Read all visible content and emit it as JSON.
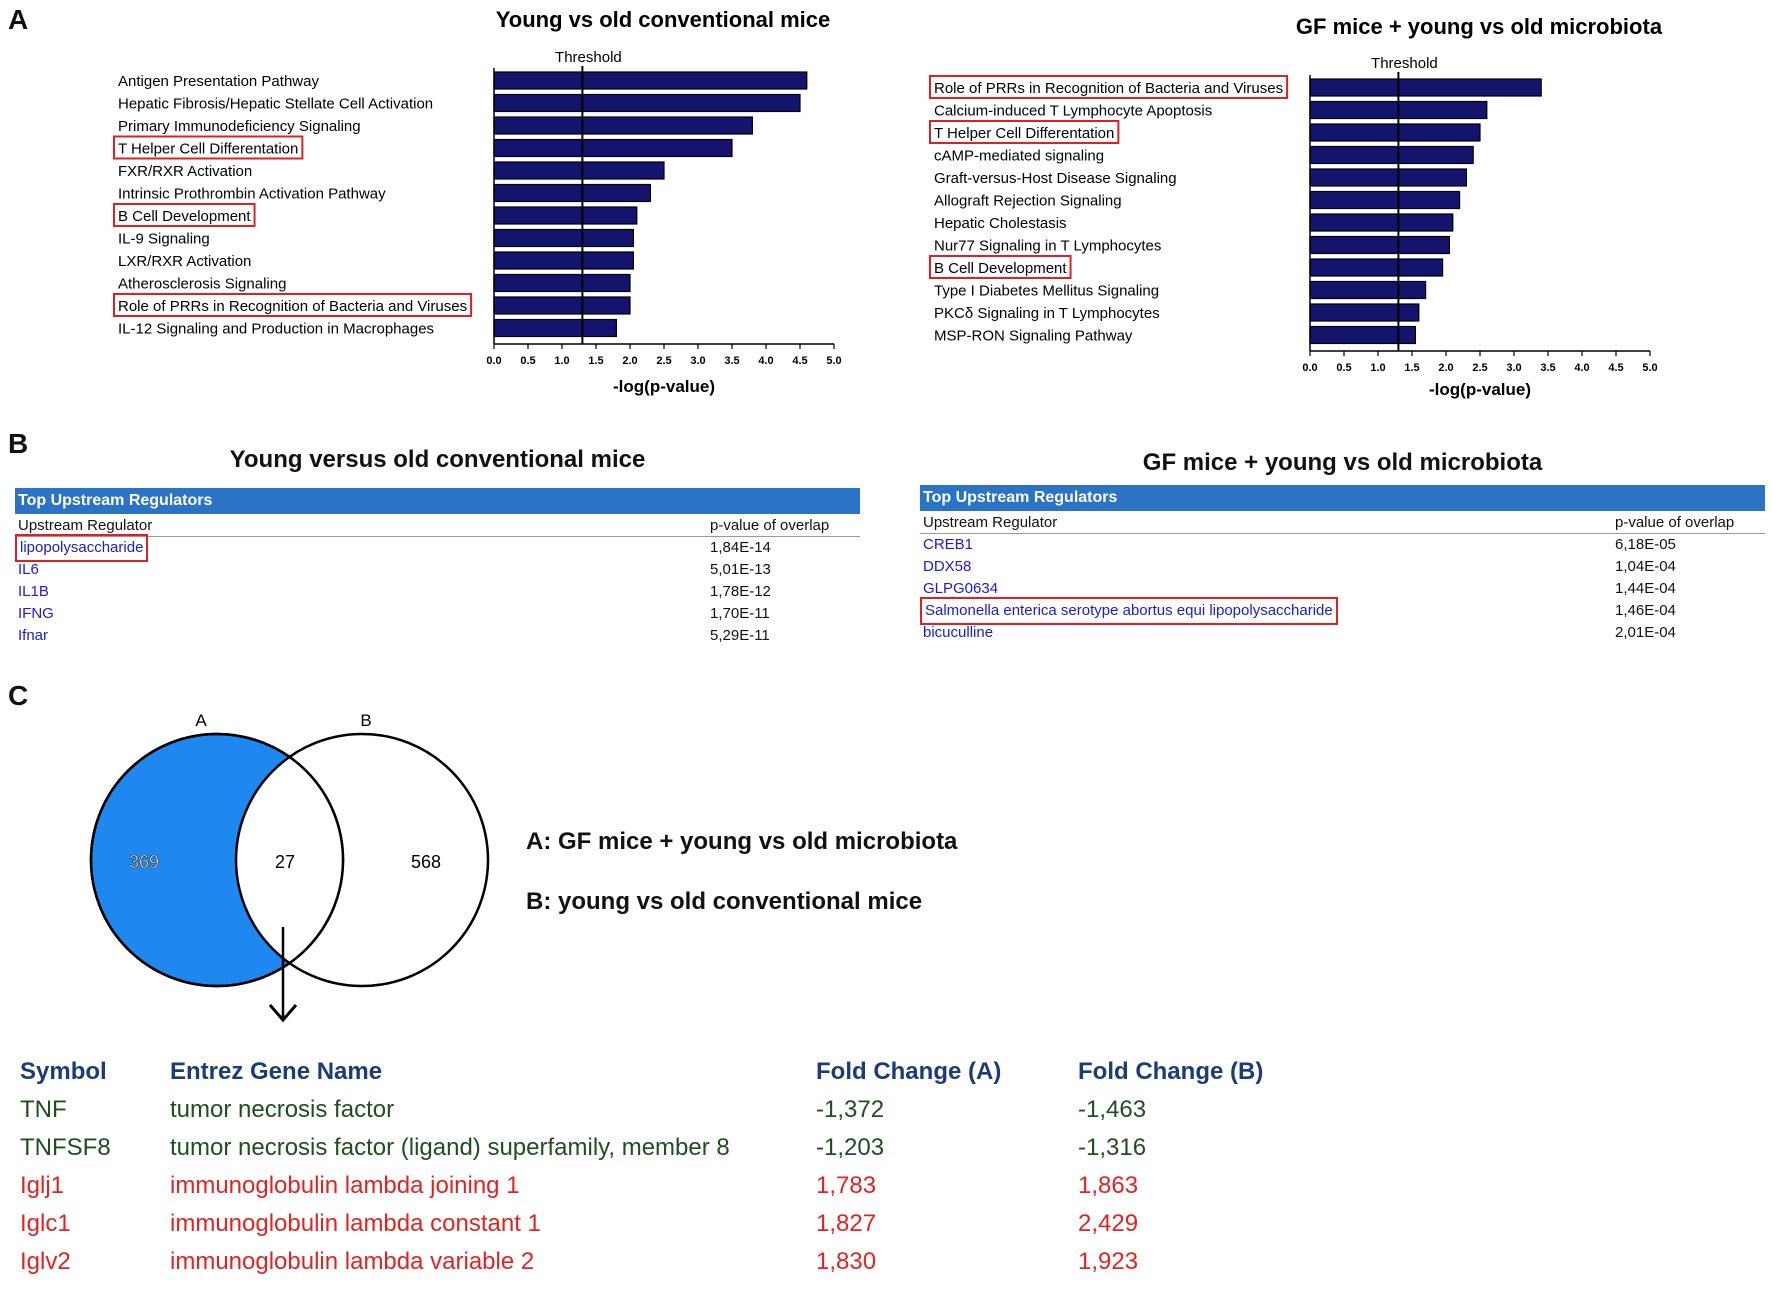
{
  "panels": {
    "a": "A",
    "b": "B",
    "c": "C"
  },
  "chart_data": [
    {
      "type": "bar",
      "orientation": "horizontal",
      "title": "Young vs old conventional mice",
      "xlabel": "-log(p-value)",
      "xlim": [
        0,
        5
      ],
      "xticks": [
        "0.0",
        "0.5",
        "1.0",
        "1.5",
        "2.0",
        "2.5",
        "3.0",
        "3.5",
        "4.0",
        "4.5",
        "5.0"
      ],
      "threshold_label": "Threshold",
      "threshold": 1.3,
      "bar_color": "#14146e",
      "categories": [
        "Antigen Presentation Pathway",
        "Hepatic Fibrosis/Hepatic Stellate Cell Activation",
        "Primary Immunodeficiency Signaling",
        "T Helper Cell Differentation",
        "FXR/RXR Activation",
        "Intrinsic Prothrombin Activation Pathway",
        "B Cell Development",
        "IL-9 Signaling",
        "LXR/RXR Activation",
        "Atherosclerosis Signaling",
        "Role of PRRs in Recognition of Bacteria and Viruses",
        "IL-12 Signaling and Production in Macrophages"
      ],
      "values": [
        4.6,
        4.5,
        3.8,
        3.5,
        2.5,
        2.3,
        2.1,
        2.05,
        2.05,
        2.0,
        2.0,
        1.8
      ],
      "highlighted": [
        3,
        6,
        10
      ]
    },
    {
      "type": "bar",
      "orientation": "horizontal",
      "title": "GF mice + young vs old microbiota",
      "xlabel": "-log(p-value)",
      "xlim": [
        0,
        5
      ],
      "xticks": [
        "0.0",
        "0.5",
        "1.0",
        "1.5",
        "2.0",
        "2.5",
        "3.0",
        "3.5",
        "4.0",
        "4.5",
        "5.0"
      ],
      "threshold_label": "Threshold",
      "threshold": 1.3,
      "bar_color": "#14146e",
      "categories": [
        "Role of PRRs in Recognition of Bacteria and Viruses",
        "Calcium-induced T Lymphocyte Apoptosis",
        "T Helper Cell Differentation",
        "cAMP-mediated signaling",
        "Graft-versus-Host Disease Signaling",
        "Allograft Rejection Signaling",
        "Hepatic Cholestasis",
        "Nur77 Signaling in T Lymphocytes",
        "B Cell Development",
        "Type I Diabetes Mellitus Signaling",
        "PKCδ Signaling in T Lymphocytes",
        "MSP-RON Signaling Pathway"
      ],
      "values": [
        3.4,
        2.6,
        2.5,
        2.4,
        2.3,
        2.2,
        2.1,
        2.05,
        1.95,
        1.7,
        1.6,
        1.55
      ],
      "highlighted": [
        0,
        2,
        8
      ]
    }
  ],
  "upstream": [
    {
      "title": "Young versus old conventional mice",
      "header": "Top Upstream Regulators",
      "col1": "Upstream Regulator",
      "col2": "p-value of overlap",
      "rows": [
        {
          "name": "lipopolysaccharide",
          "p": "1,84E-14",
          "boxed": true
        },
        {
          "name": "IL6",
          "p": "5,01E-13",
          "boxed": false
        },
        {
          "name": "IL1B",
          "p": "1,78E-12",
          "boxed": false
        },
        {
          "name": "IFNG",
          "p": "1,70E-11",
          "boxed": false
        },
        {
          "name": "Ifnar",
          "p": "5,29E-11",
          "boxed": false
        }
      ]
    },
    {
      "title": "GF mice + young vs old microbiota",
      "header": "Top Upstream Regulators",
      "col1": "Upstream Regulator",
      "col2": "p-value of overlap",
      "rows": [
        {
          "name": "CREB1",
          "p": "6,18E-05",
          "boxed": false
        },
        {
          "name": "DDX58",
          "p": "1,04E-04",
          "boxed": false
        },
        {
          "name": "GLPG0634",
          "p": "1,44E-04",
          "boxed": false
        },
        {
          "name": "Salmonella enterica serotype abortus equi lipopolysaccharide",
          "p": "1,46E-04",
          "boxed": true
        },
        {
          "name": "bicuculline",
          "p": "2,01E-04",
          "boxed": false
        }
      ]
    }
  ],
  "venn": {
    "label_a": "A",
    "label_b": "B",
    "only_a": "369",
    "both": "27",
    "only_b": "568",
    "fill_color": "#1e88f0",
    "legend_a": "A: GF mice + young vs old microbiota",
    "legend_b": "B: young vs old conventional mice"
  },
  "gene_table": {
    "headers": [
      "Symbol",
      "Entrez Gene Name",
      "Fold Change (A)",
      "Fold Change (B)"
    ],
    "rows": [
      {
        "cells": [
          "TNF",
          "tumor necrosis factor",
          "-1,372",
          "-1,463"
        ],
        "color": "#1f4e1f"
      },
      {
        "cells": [
          "TNFSF8",
          "tumor necrosis factor (ligand) superfamily, member 8",
          "-1,203",
          "-1,316"
        ],
        "color": "#1f4e1f"
      },
      {
        "cells": [
          "Iglj1",
          "immunoglobulin lambda joining 1",
          "1,783",
          "1,863"
        ],
        "color": "#e32222"
      },
      {
        "cells": [
          "Iglc1",
          "immunoglobulin lambda constant 1",
          "1,827",
          "2,429"
        ],
        "color": "#e32222"
      },
      {
        "cells": [
          "Iglv2",
          "immunoglobulin lambda variable 2",
          "1,830",
          "1,923"
        ],
        "color": "#e32222"
      }
    ]
  }
}
